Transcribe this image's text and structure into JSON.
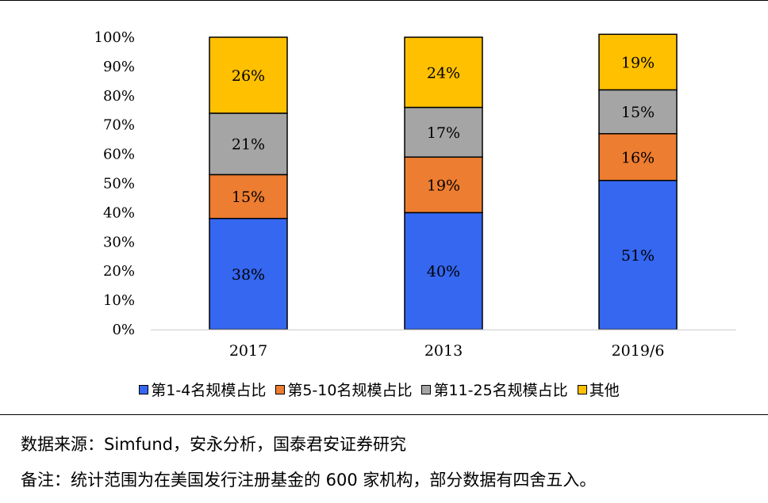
{
  "chart_data": {
    "type": "bar",
    "stacked": true,
    "categories": [
      "2017",
      "2013",
      "2019/6"
    ],
    "series": [
      {
        "name": "第1-4名规模占比",
        "values": [
          38,
          40,
          51
        ],
        "labels": [
          "38%",
          "40%",
          "51%"
        ],
        "color": "#3567f0"
      },
      {
        "name": "第5-10名规模占比",
        "values": [
          15,
          19,
          16
        ],
        "labels": [
          "15%",
          "19%",
          "16%"
        ],
        "color": "#ed7d31"
      },
      {
        "name": "第11-25名规模占比",
        "values": [
          21,
          17,
          15
        ],
        "labels": [
          "21%",
          "17%",
          "15%"
        ],
        "color": "#a5a5a5"
      },
      {
        "name": "其他",
        "values": [
          26,
          24,
          19
        ],
        "labels": [
          "26%",
          "24%",
          "19%"
        ],
        "color": "#ffc000"
      }
    ],
    "ylim": [
      0,
      100
    ],
    "y_ticks": [
      "0%",
      "10%",
      "20%",
      "30%",
      "40%",
      "50%",
      "60%",
      "70%",
      "80%",
      "90%",
      "100%"
    ],
    "grid": false,
    "legend_position": "bottom"
  },
  "source": {
    "text": "数据来源：Simfund，安永分析，国泰君安证券研究"
  },
  "note": {
    "text": "备注：统计范围为在美国发行注册基金的 600 家机构，部分数据有四舍五入。"
  }
}
